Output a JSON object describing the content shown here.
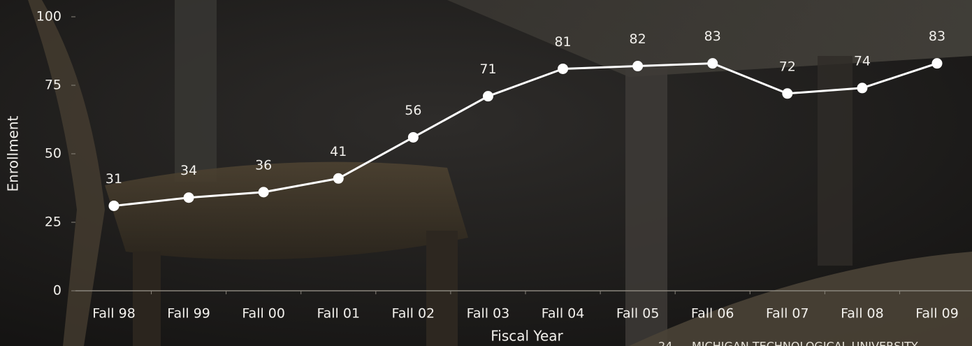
{
  "chart_data": {
    "type": "line",
    "x_label": "Fiscal Year",
    "y_label": "Enrollment",
    "categories": [
      "Fall 98",
      "Fall 99",
      "Fall 00",
      "Fall 01",
      "Fall 02",
      "Fall 03",
      "Fall 04",
      "Fall 05",
      "Fall 06",
      "Fall 07",
      "Fall 08",
      "Fall 09"
    ],
    "values": [
      31,
      34,
      36,
      41,
      56,
      71,
      81,
      82,
      83,
      72,
      74,
      83
    ],
    "color": "#ffffff",
    "ylim": [
      0,
      100
    ],
    "yticks": [
      0,
      25,
      50,
      75,
      100
    ],
    "grid": false,
    "data_labels": true
  },
  "footer": {
    "page": "24",
    "text": "MICHIGAN TECHNOLOGICAL UNIVERSITY"
  }
}
